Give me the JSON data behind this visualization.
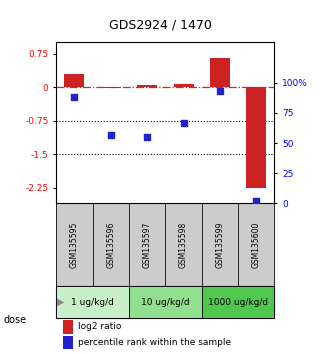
{
  "title": "GDS2924 / 1470",
  "samples": [
    "GSM135595",
    "GSM135596",
    "GSM135597",
    "GSM135598",
    "GSM135599",
    "GSM135600"
  ],
  "log2_ratio": [
    0.3,
    -0.02,
    0.05,
    0.07,
    0.65,
    -2.25
  ],
  "percentile_rank": [
    88,
    57,
    55,
    67,
    93,
    2
  ],
  "ylim_left": [
    -2.6,
    1.0
  ],
  "yticks_left": [
    0.75,
    0,
    -0.75,
    -1.5,
    -2.25
  ],
  "yticks_right": [
    100,
    75,
    50,
    25,
    0
  ],
  "ylim_right": [
    0,
    133.33
  ],
  "dose_groups": [
    {
      "label": "1 ug/kg/d",
      "samples": [
        0,
        1
      ],
      "color": "#c8f0c8"
    },
    {
      "label": "10 ug/kg/d",
      "samples": [
        2,
        3
      ],
      "color": "#90e090"
    },
    {
      "label": "1000 ug/kg/d",
      "samples": [
        4,
        5
      ],
      "color": "#50c850"
    }
  ],
  "bar_color": "#cc2222",
  "dot_color": "#2222cc",
  "hline_color": "#dd2222",
  "dotline1": -0.75,
  "dotline2": -1.5,
  "sample_bg_color": "#cccccc",
  "legend_bar_label": "log2 ratio",
  "legend_dot_label": "percentile rank within the sample",
  "bar_width": 0.55
}
